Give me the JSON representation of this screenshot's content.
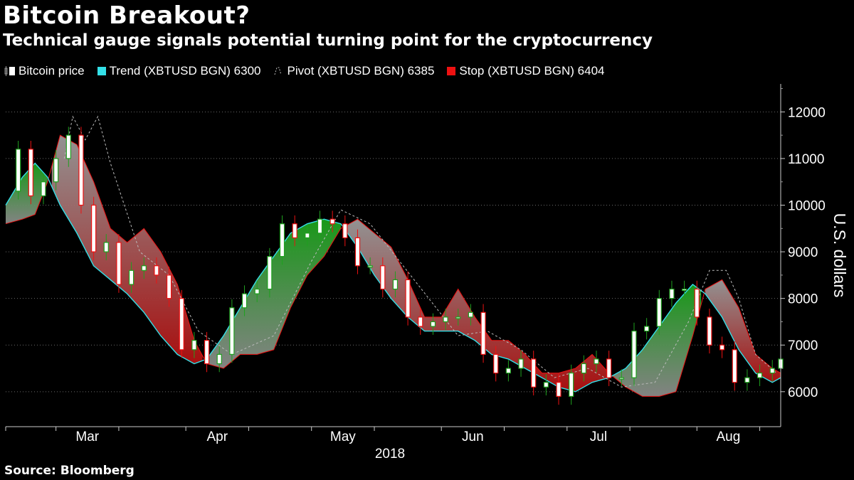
{
  "title": "Bitcoin Breakout?",
  "subtitle": "Technical gauge signals potential turning point for the cryptocurrency",
  "source": "Source: Bloomberg",
  "legend": [
    {
      "label": "Bitcoin price",
      "color": "#ffffff",
      "icon": "candlestick-icon"
    },
    {
      "label": "Trend (XBTUSD BGN) 6300",
      "color": "#33e0e8",
      "icon": "square-icon"
    },
    {
      "label": "Pivot (XBTUSD BGN) 6385",
      "color": "#bbbbbb",
      "icon": "dashed-line-icon"
    },
    {
      "label": "Stop (XBTUSD BGN) 6404",
      "color": "#ee1111",
      "icon": "square-icon"
    }
  ],
  "colors": {
    "up": "#1fa01f",
    "down": "#ee1111",
    "trend": "#33e0e8",
    "stop": "#ee1111",
    "pivot": "#bbbbbb",
    "background": "#000000"
  },
  "chart_data": {
    "type": "candlestick",
    "ylabel": "U.S. dollars",
    "year_label": "2018",
    "ylim": [
      5250,
      12600
    ],
    "yticks": [
      6000,
      7000,
      8000,
      9000,
      10000,
      11000,
      12000
    ],
    "ytick_labels": [
      "6000",
      "7000",
      "8000",
      "9000",
      "10000",
      "11000",
      "12000"
    ],
    "x_range": [
      "2018-02-17",
      "2018-08-21"
    ],
    "x_ticks": [
      {
        "label": "Mar",
        "date": "2018-03-01"
      },
      {
        "label": "Apr",
        "date": "2018-04-01"
      },
      {
        "label": "May",
        "date": "2018-05-01"
      },
      {
        "label": "Jun",
        "date": "2018-06-01"
      },
      {
        "label": "Jul",
        "date": "2018-07-01"
      },
      {
        "label": "Aug",
        "date": "2018-08-01"
      }
    ],
    "month_boundaries": [
      "2018-02-17",
      "2018-03-01",
      "2018-03-16",
      "2018-04-01",
      "2018-04-16",
      "2018-05-01",
      "2018-05-16",
      "2018-06-01",
      "2018-06-16",
      "2018-07-01",
      "2018-07-16",
      "2018-08-01",
      "2018-08-16"
    ],
    "price_close": [
      [
        "2018-02-17",
        10300
      ],
      [
        "2018-02-20",
        11200
      ],
      [
        "2018-02-23",
        10200
      ],
      [
        "2018-02-26",
        10500
      ],
      [
        "2018-03-01",
        11000
      ],
      [
        "2018-03-04",
        11500
      ],
      [
        "2018-03-07",
        10000
      ],
      [
        "2018-03-10",
        9000
      ],
      [
        "2018-03-13",
        9200
      ],
      [
        "2018-03-16",
        8300
      ],
      [
        "2018-03-19",
        8600
      ],
      [
        "2018-03-22",
        8700
      ],
      [
        "2018-03-25",
        8500
      ],
      [
        "2018-03-28",
        8000
      ],
      [
        "2018-03-31",
        6900
      ],
      [
        "2018-04-03",
        7100
      ],
      [
        "2018-04-06",
        6600
      ],
      [
        "2018-04-09",
        6800
      ],
      [
        "2018-04-12",
        7800
      ],
      [
        "2018-04-15",
        8100
      ],
      [
        "2018-04-18",
        8200
      ],
      [
        "2018-04-21",
        8900
      ],
      [
        "2018-04-24",
        9600
      ],
      [
        "2018-04-27",
        9300
      ],
      [
        "2018-04-30",
        9400
      ],
      [
        "2018-05-03",
        9700
      ],
      [
        "2018-05-06",
        9600
      ],
      [
        "2018-05-09",
        9300
      ],
      [
        "2018-05-12",
        8700
      ],
      [
        "2018-05-15",
        8700
      ],
      [
        "2018-05-18",
        8200
      ],
      [
        "2018-05-21",
        8400
      ],
      [
        "2018-05-24",
        7600
      ],
      [
        "2018-05-27",
        7400
      ],
      [
        "2018-05-30",
        7500
      ],
      [
        "2018-06-02",
        7600
      ],
      [
        "2018-06-05",
        7600
      ],
      [
        "2018-06-08",
        7700
      ],
      [
        "2018-06-11",
        6800
      ],
      [
        "2018-06-14",
        6400
      ],
      [
        "2018-06-17",
        6500
      ],
      [
        "2018-06-20",
        6700
      ],
      [
        "2018-06-23",
        6100
      ],
      [
        "2018-06-26",
        6200
      ],
      [
        "2018-06-29",
        5900
      ],
      [
        "2018-07-02",
        6400
      ],
      [
        "2018-07-05",
        6600
      ],
      [
        "2018-07-08",
        6700
      ],
      [
        "2018-07-11",
        6300
      ],
      [
        "2018-07-14",
        6300
      ],
      [
        "2018-07-17",
        7300
      ],
      [
        "2018-07-20",
        7400
      ],
      [
        "2018-07-23",
        8000
      ],
      [
        "2018-07-26",
        8200
      ],
      [
        "2018-07-29",
        8200
      ],
      [
        "2018-08-01",
        7600
      ],
      [
        "2018-08-04",
        7000
      ],
      [
        "2018-08-07",
        6900
      ],
      [
        "2018-08-10",
        6200
      ],
      [
        "2018-08-13",
        6300
      ],
      [
        "2018-08-16",
        6400
      ],
      [
        "2018-08-19",
        6500
      ],
      [
        "2018-08-21",
        6700
      ]
    ],
    "trend": [
      [
        "2018-02-17",
        10000
      ],
      [
        "2018-02-21",
        10600
      ],
      [
        "2018-02-24",
        10900
      ],
      [
        "2018-02-27",
        10600
      ],
      [
        "2018-03-02",
        10000
      ],
      [
        "2018-03-06",
        9400
      ],
      [
        "2018-03-10",
        8700
      ],
      [
        "2018-03-14",
        8400
      ],
      [
        "2018-03-18",
        8100
      ],
      [
        "2018-03-22",
        7700
      ],
      [
        "2018-03-26",
        7200
      ],
      [
        "2018-03-30",
        6800
      ],
      [
        "2018-04-03",
        6600
      ],
      [
        "2018-04-06",
        6700
      ],
      [
        "2018-04-10",
        7200
      ],
      [
        "2018-04-14",
        7800
      ],
      [
        "2018-04-18",
        8400
      ],
      [
        "2018-04-22",
        8900
      ],
      [
        "2018-04-26",
        9400
      ],
      [
        "2018-04-30",
        9600
      ],
      [
        "2018-05-04",
        9700
      ],
      [
        "2018-05-08",
        9600
      ],
      [
        "2018-05-12",
        9100
      ],
      [
        "2018-05-16",
        8500
      ],
      [
        "2018-05-20",
        8000
      ],
      [
        "2018-05-24",
        7600
      ],
      [
        "2018-05-28",
        7300
      ],
      [
        "2018-06-01",
        7300
      ],
      [
        "2018-06-05",
        7300
      ],
      [
        "2018-06-09",
        7100
      ],
      [
        "2018-06-13",
        6800
      ],
      [
        "2018-06-17",
        6700
      ],
      [
        "2018-06-21",
        6500
      ],
      [
        "2018-06-25",
        6300
      ],
      [
        "2018-06-29",
        6100
      ],
      [
        "2018-07-03",
        6000
      ],
      [
        "2018-07-07",
        6200
      ],
      [
        "2018-07-11",
        6300
      ],
      [
        "2018-07-15",
        6500
      ],
      [
        "2018-07-19",
        6900
      ],
      [
        "2018-07-23",
        7400
      ],
      [
        "2018-07-27",
        7900
      ],
      [
        "2018-07-31",
        8300
      ],
      [
        "2018-08-03",
        8100
      ],
      [
        "2018-08-07",
        7600
      ],
      [
        "2018-08-11",
        6900
      ],
      [
        "2018-08-15",
        6400
      ],
      [
        "2018-08-19",
        6200
      ],
      [
        "2018-08-21",
        6300
      ]
    ],
    "stop": [
      [
        "2018-02-17",
        9600
      ],
      [
        "2018-02-21",
        9700
      ],
      [
        "2018-02-24",
        9800
      ],
      [
        "2018-02-27",
        10500
      ],
      [
        "2018-03-02",
        11500
      ],
      [
        "2018-03-06",
        11300
      ],
      [
        "2018-03-10",
        10500
      ],
      [
        "2018-03-14",
        9500
      ],
      [
        "2018-03-18",
        9200
      ],
      [
        "2018-03-22",
        9500
      ],
      [
        "2018-03-26",
        9000
      ],
      [
        "2018-03-30",
        8300
      ],
      [
        "2018-04-03",
        7100
      ],
      [
        "2018-04-06",
        6600
      ],
      [
        "2018-04-10",
        6500
      ],
      [
        "2018-04-14",
        6800
      ],
      [
        "2018-04-18",
        6800
      ],
      [
        "2018-04-22",
        6900
      ],
      [
        "2018-04-26",
        7800
      ],
      [
        "2018-04-30",
        8500
      ],
      [
        "2018-05-04",
        8900
      ],
      [
        "2018-05-08",
        9500
      ],
      [
        "2018-05-12",
        9700
      ],
      [
        "2018-05-16",
        9400
      ],
      [
        "2018-05-20",
        9100
      ],
      [
        "2018-05-24",
        8400
      ],
      [
        "2018-05-28",
        7600
      ],
      [
        "2018-06-01",
        7600
      ],
      [
        "2018-06-05",
        8200
      ],
      [
        "2018-06-09",
        7600
      ],
      [
        "2018-06-13",
        7100
      ],
      [
        "2018-06-17",
        7100
      ],
      [
        "2018-06-21",
        6800
      ],
      [
        "2018-06-25",
        6400
      ],
      [
        "2018-06-29",
        6400
      ],
      [
        "2018-07-03",
        6500
      ],
      [
        "2018-07-07",
        6800
      ],
      [
        "2018-07-11",
        6400
      ],
      [
        "2018-07-15",
        6100
      ],
      [
        "2018-07-19",
        5900
      ],
      [
        "2018-07-23",
        5900
      ],
      [
        "2018-07-27",
        6000
      ],
      [
        "2018-07-31",
        7200
      ],
      [
        "2018-08-03",
        8200
      ],
      [
        "2018-08-07",
        8400
      ],
      [
        "2018-08-11",
        7800
      ],
      [
        "2018-08-15",
        6800
      ],
      [
        "2018-08-19",
        6500
      ],
      [
        "2018-08-21",
        6400
      ]
    ],
    "pivot": [
      [
        "2018-03-03",
        11000
      ],
      [
        "2018-03-05",
        11900
      ],
      [
        "2018-03-08",
        11400
      ],
      [
        "2018-03-11",
        11900
      ],
      [
        "2018-03-14",
        10900
      ],
      [
        "2018-03-21",
        9000
      ],
      [
        "2018-03-28",
        8500
      ],
      [
        "2018-04-04",
        7300
      ],
      [
        "2018-04-12",
        6800
      ],
      [
        "2018-04-22",
        7200
      ],
      [
        "2018-05-01",
        8800
      ],
      [
        "2018-05-08",
        9900
      ],
      [
        "2018-05-15",
        9600
      ],
      [
        "2018-05-22",
        8800
      ],
      [
        "2018-05-29",
        8000
      ],
      [
        "2018-06-05",
        7200
      ],
      [
        "2018-06-12",
        7300
      ],
      [
        "2018-06-20",
        6900
      ],
      [
        "2018-06-28",
        6300
      ],
      [
        "2018-07-06",
        6500
      ],
      [
        "2018-07-14",
        6100
      ],
      [
        "2018-07-22",
        6200
      ],
      [
        "2018-07-30",
        7500
      ],
      [
        "2018-08-04",
        8600
      ],
      [
        "2018-08-08",
        8600
      ],
      [
        "2018-08-11",
        8000
      ],
      [
        "2018-08-15",
        6800
      ],
      [
        "2018-08-20",
        6400
      ]
    ]
  }
}
